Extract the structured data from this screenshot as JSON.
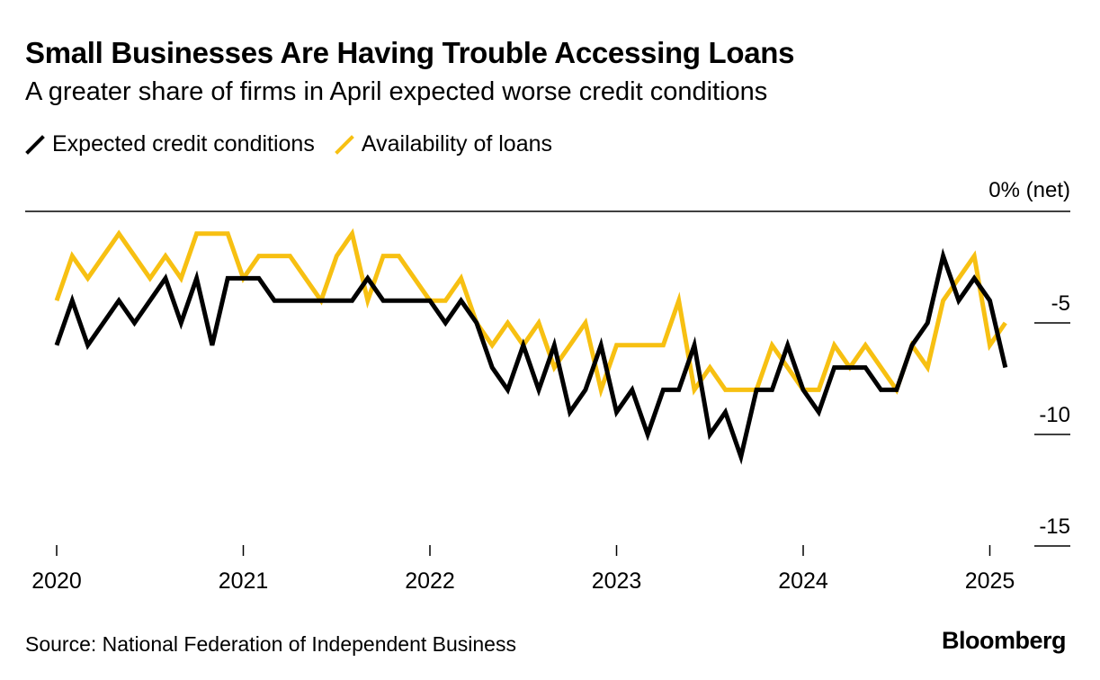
{
  "header": {
    "title": "Small Businesses Are Having Trouble Accessing Loans",
    "subtitle": "A greater share of firms in April expected worse credit conditions"
  },
  "legend": [
    {
      "label": "Expected credit conditions",
      "color": "#000000"
    },
    {
      "label": "Availability of loans",
      "color": "#f7c012"
    }
  ],
  "footer": {
    "source": "Source: National Federation of Independent Business",
    "logo": "Bloomberg"
  },
  "chart_data": {
    "type": "line",
    "ylabel": "0% (net)",
    "ylim": [
      -15,
      0
    ],
    "yticks": [
      -5,
      -10,
      -15
    ],
    "ytick_labels": [
      "-5",
      "-10",
      "-15"
    ],
    "xticks": [
      2020,
      2021,
      2022,
      2023,
      2024,
      2025
    ],
    "xtick_labels": [
      "2020",
      "2021",
      "2022",
      "2023",
      "2024",
      "2025"
    ],
    "x_start": "2020-01",
    "x_frequency": "monthly",
    "series": [
      {
        "name": "Expected credit conditions",
        "color": "#000000",
        "values": [
          -6,
          -4,
          -6,
          -5,
          -4,
          -5,
          -4,
          -3,
          -5,
          -3,
          -6,
          -3,
          -3,
          -3,
          -4,
          -4,
          -4,
          -4,
          -4,
          -4,
          -3,
          -4,
          -4,
          -4,
          -4,
          -5,
          -4,
          -5,
          -7,
          -8,
          -6,
          -8,
          -6,
          -9,
          -8,
          -6,
          -9,
          -8,
          -10,
          -8,
          -8,
          -6,
          -10,
          -9,
          -11,
          -8,
          -8,
          -6,
          -8,
          -9,
          -7,
          -7,
          -7,
          -8,
          -8,
          -6,
          -5,
          -2,
          -4,
          -3,
          -4,
          -7
        ]
      },
      {
        "name": "Availability of loans",
        "color": "#f7c012",
        "values": [
          -4,
          -2,
          -3,
          -2,
          -1,
          -2,
          -3,
          -2,
          -3,
          -1,
          -1,
          -1,
          -3,
          -2,
          -2,
          -2,
          -3,
          -4,
          -2,
          -1,
          -4,
          -2,
          -2,
          -3,
          -4,
          -4,
          -3,
          -5,
          -6,
          -5,
          -6,
          -5,
          -7,
          -6,
          -5,
          -8,
          -6,
          -6,
          -6,
          -6,
          -4,
          -8,
          -7,
          -8,
          -8,
          -8,
          -6,
          -7,
          -8,
          -8,
          -6,
          -7,
          -6,
          -7,
          -8,
          -6,
          -7,
          -4,
          -3,
          -2,
          -6,
          -5
        ]
      }
    ]
  }
}
